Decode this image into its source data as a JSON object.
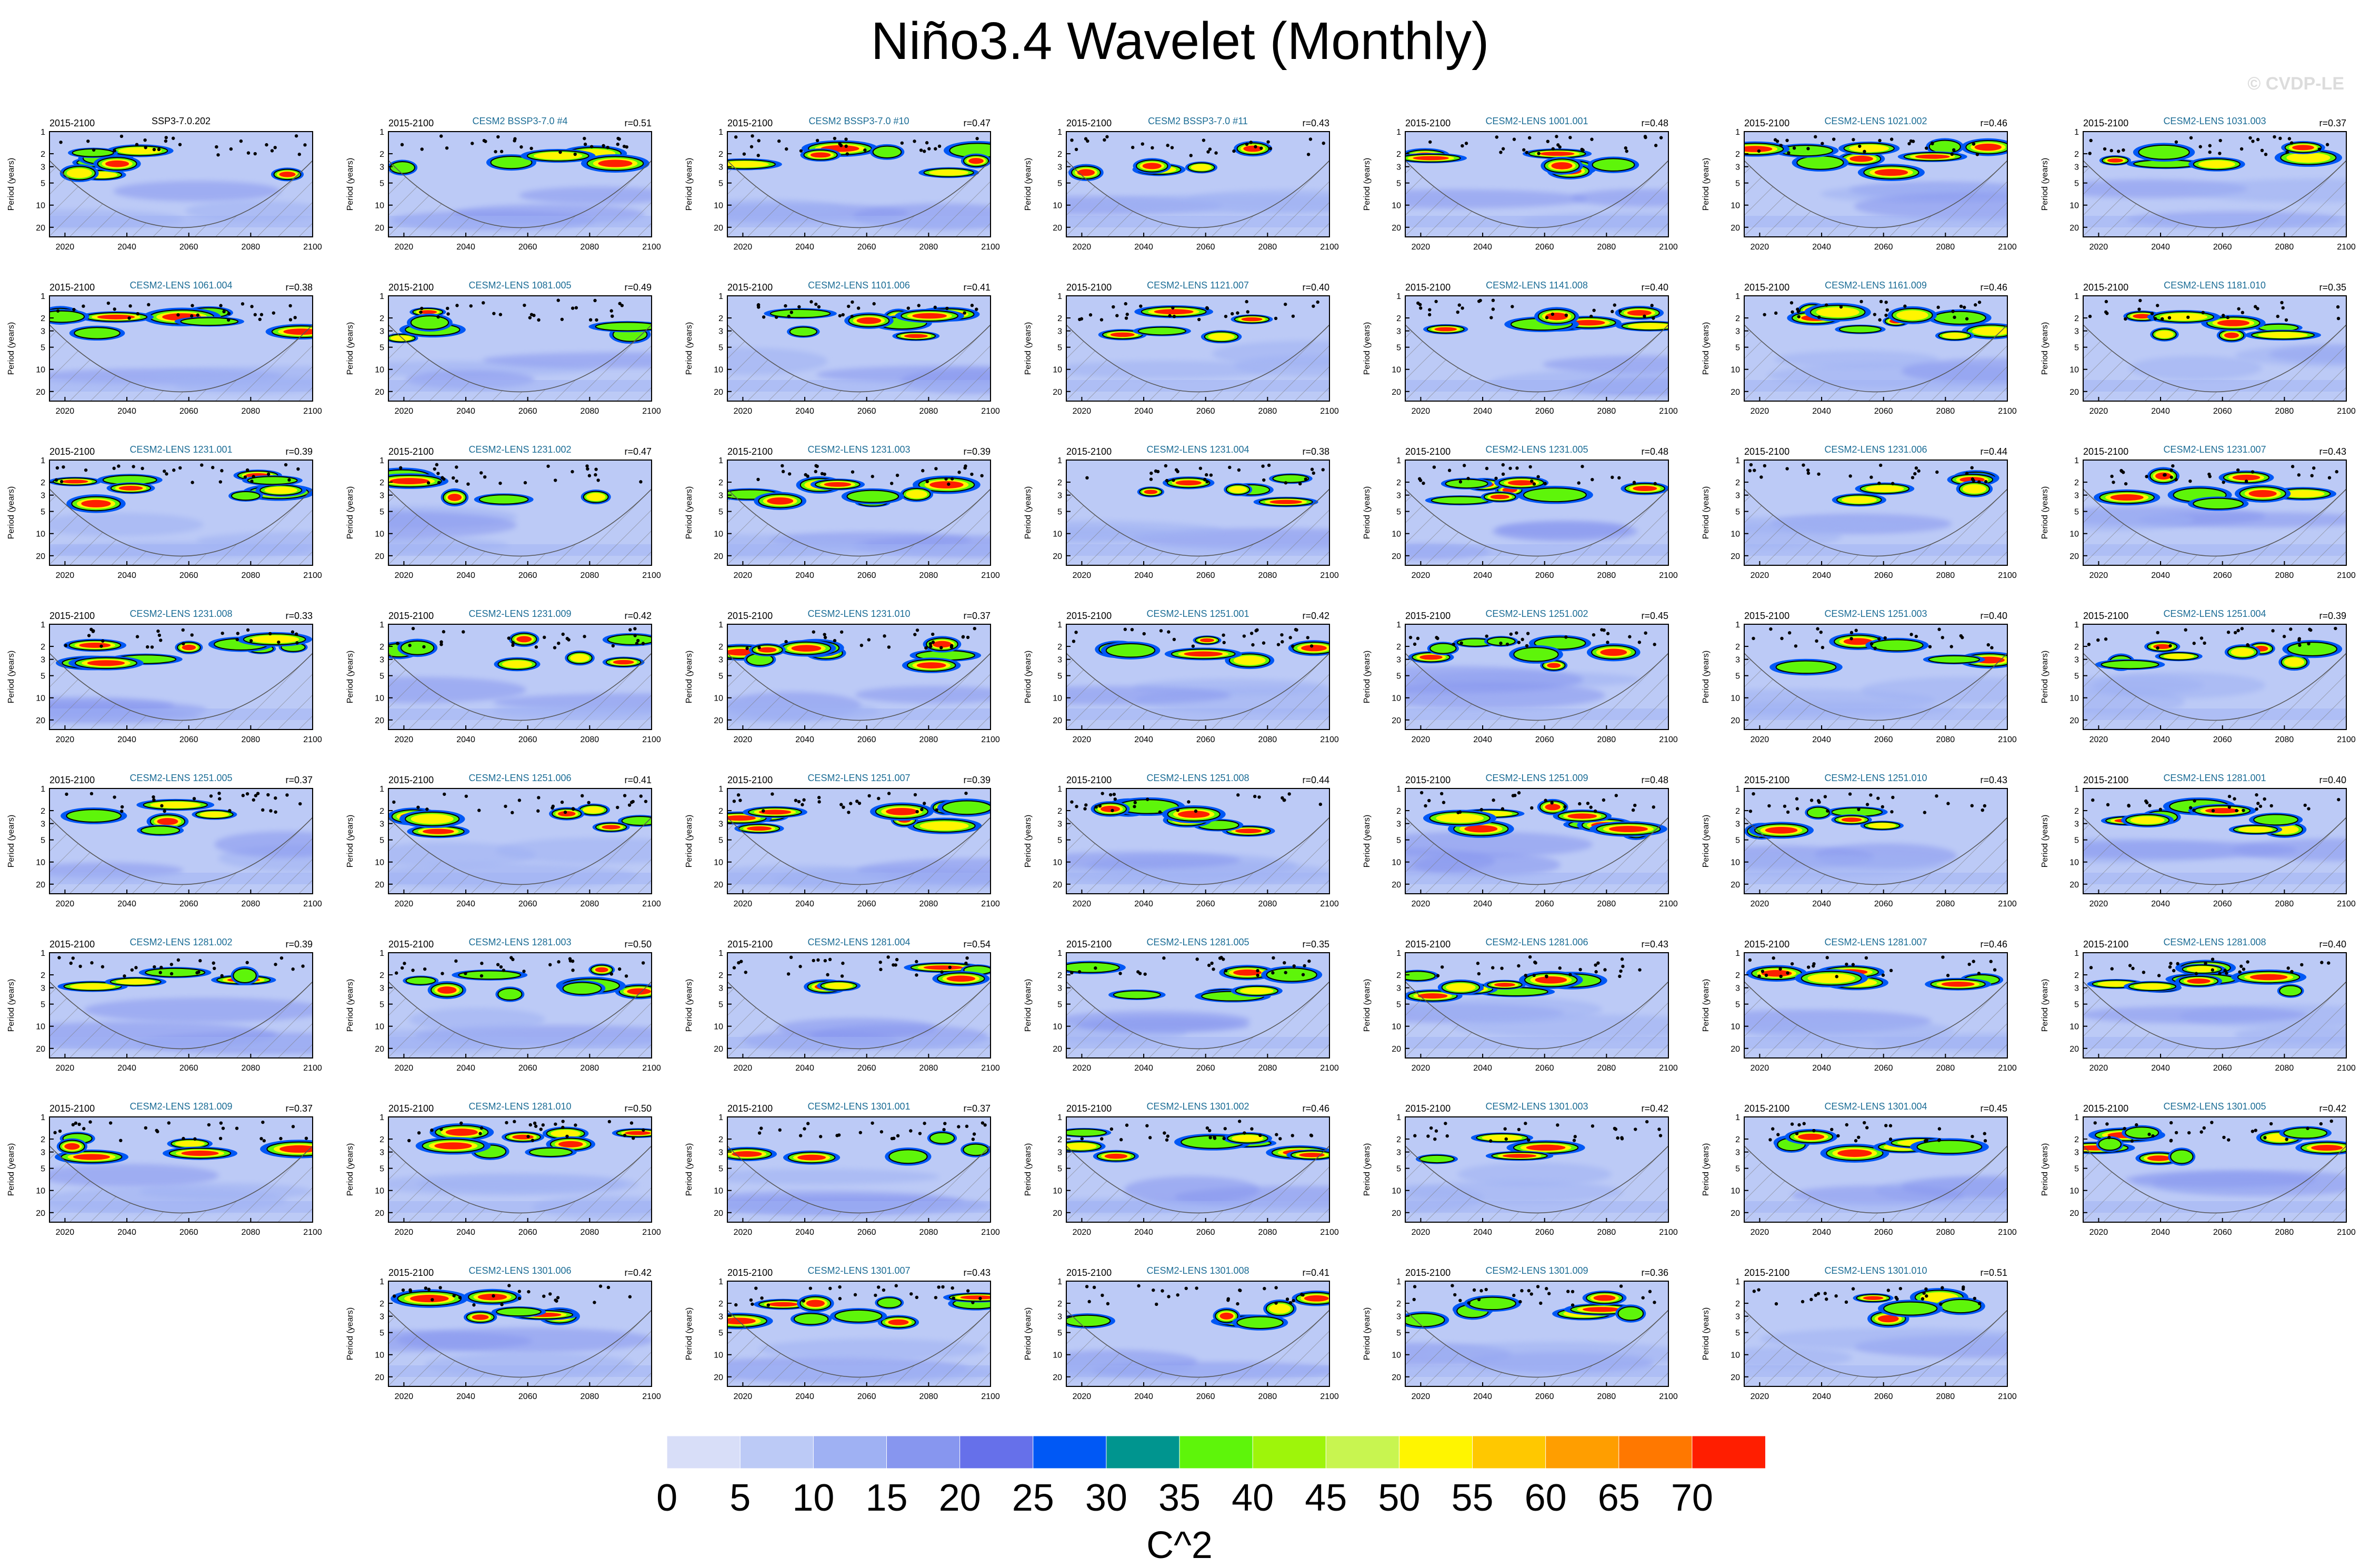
{
  "title": "Niño3.4 Wavelet (Monthly)",
  "copyright": "© CVDP-LE",
  "period_range": "2015-2100",
  "ylabel": "Period (years)",
  "y_ticks": [
    "1",
    "2",
    "3",
    "5",
    "10",
    "20"
  ],
  "x_ticks": [
    "2020",
    "2040",
    "2060",
    "2080",
    "2100"
  ],
  "colorbar": {
    "label": "C^2",
    "ticks": [
      "0",
      "5",
      "10",
      "15",
      "20",
      "25",
      "30",
      "35",
      "40",
      "45",
      "50",
      "55",
      "60",
      "65",
      "70"
    ],
    "colors": [
      "#ffffff",
      "#d8def8",
      "#bccaf6",
      "#9fb1f3",
      "#8796ef",
      "#6670ea",
      "#0058f5",
      "#00958f",
      "#5ef50a",
      "#9ef50a",
      "#c8f550",
      "#fff500",
      "#ffc800",
      "#ff9e00",
      "#ff7800",
      "#ff1e00"
    ]
  },
  "chart_data": {
    "type": "heatmap",
    "title": "Niño3.4 Wavelet (Monthly)",
    "xlabel": "",
    "ylabel": "Period (years)",
    "xlim": [
      2015,
      2100
    ],
    "ylim": [
      1,
      20
    ],
    "y_scale": "log",
    "units": "C^2",
    "panels": [
      {
        "label": "SSP3-7.0.202",
        "r": ""
      },
      {
        "label": "CESM2 BSSP3-7.0 #4",
        "r": "r=0.51"
      },
      {
        "label": "CESM2 BSSP3-7.0 #10",
        "r": "r=0.47"
      },
      {
        "label": "CESM2 BSSP3-7.0 #11",
        "r": "r=0.43"
      },
      {
        "label": "CESM2-LENS 1001.001",
        "r": "r=0.48"
      },
      {
        "label": "CESM2-LENS 1021.002",
        "r": "r=0.46"
      },
      {
        "label": "CESM2-LENS 1031.003",
        "r": "r=0.37"
      },
      {
        "label": "CESM2-LENS 1061.004",
        "r": "r=0.38"
      },
      {
        "label": "CESM2-LENS 1081.005",
        "r": "r=0.49"
      },
      {
        "label": "CESM2-LENS 1101.006",
        "r": "r=0.41"
      },
      {
        "label": "CESM2-LENS 1121.007",
        "r": "r=0.40"
      },
      {
        "label": "CESM2-LENS 1141.008",
        "r": "r=0.40"
      },
      {
        "label": "CESM2-LENS 1161.009",
        "r": "r=0.46"
      },
      {
        "label": "CESM2-LENS 1181.010",
        "r": "r=0.35"
      },
      {
        "label": "CESM2-LENS 1231.001",
        "r": "r=0.39"
      },
      {
        "label": "CESM2-LENS 1231.002",
        "r": "r=0.47"
      },
      {
        "label": "CESM2-LENS 1231.003",
        "r": "r=0.39"
      },
      {
        "label": "CESM2-LENS 1231.004",
        "r": "r=0.38"
      },
      {
        "label": "CESM2-LENS 1231.005",
        "r": "r=0.48"
      },
      {
        "label": "CESM2-LENS 1231.006",
        "r": "r=0.44"
      },
      {
        "label": "CESM2-LENS 1231.007",
        "r": "r=0.43"
      },
      {
        "label": "CESM2-LENS 1231.008",
        "r": "r=0.33"
      },
      {
        "label": "CESM2-LENS 1231.009",
        "r": "r=0.42"
      },
      {
        "label": "CESM2-LENS 1231.010",
        "r": "r=0.37"
      },
      {
        "label": "CESM2-LENS 1251.001",
        "r": "r=0.42"
      },
      {
        "label": "CESM2-LENS 1251.002",
        "r": "r=0.45"
      },
      {
        "label": "CESM2-LENS 1251.003",
        "r": "r=0.40"
      },
      {
        "label": "CESM2-LENS 1251.004",
        "r": "r=0.39"
      },
      {
        "label": "CESM2-LENS 1251.005",
        "r": "r=0.37"
      },
      {
        "label": "CESM2-LENS 1251.006",
        "r": "r=0.41"
      },
      {
        "label": "CESM2-LENS 1251.007",
        "r": "r=0.39"
      },
      {
        "label": "CESM2-LENS 1251.008",
        "r": "r=0.44"
      },
      {
        "label": "CESM2-LENS 1251.009",
        "r": "r=0.48"
      },
      {
        "label": "CESM2-LENS 1251.010",
        "r": "r=0.43"
      },
      {
        "label": "CESM2-LENS 1281.001",
        "r": "r=0.40"
      },
      {
        "label": "CESM2-LENS 1281.002",
        "r": "r=0.39"
      },
      {
        "label": "CESM2-LENS 1281.003",
        "r": "r=0.50"
      },
      {
        "label": "CESM2-LENS 1281.004",
        "r": "r=0.54"
      },
      {
        "label": "CESM2-LENS 1281.005",
        "r": "r=0.35"
      },
      {
        "label": "CESM2-LENS 1281.006",
        "r": "r=0.43"
      },
      {
        "label": "CESM2-LENS 1281.007",
        "r": "r=0.46"
      },
      {
        "label": "CESM2-LENS 1281.008",
        "r": "r=0.40"
      },
      {
        "label": "CESM2-LENS 1281.009",
        "r": "r=0.37"
      },
      {
        "label": "CESM2-LENS 1281.010",
        "r": "r=0.50"
      },
      {
        "label": "CESM2-LENS 1301.001",
        "r": "r=0.37"
      },
      {
        "label": "CESM2-LENS 1301.002",
        "r": "r=0.46"
      },
      {
        "label": "CESM2-LENS 1301.003",
        "r": "r=0.42"
      },
      {
        "label": "CESM2-LENS 1301.004",
        "r": "r=0.45"
      },
      {
        "label": "CESM2-LENS 1301.005",
        "r": "r=0.42"
      },
      {
        "label": "CESM2-LENS 1301.006",
        "r": "r=0.42"
      },
      {
        "label": "CESM2-LENS 1301.007",
        "r": "r=0.43"
      },
      {
        "label": "CESM2-LENS 1301.008",
        "r": "r=0.41"
      },
      {
        "label": "CESM2-LENS 1301.009",
        "r": "r=0.36"
      },
      {
        "label": "CESM2-LENS 1301.010",
        "r": "r=0.51"
      }
    ]
  }
}
